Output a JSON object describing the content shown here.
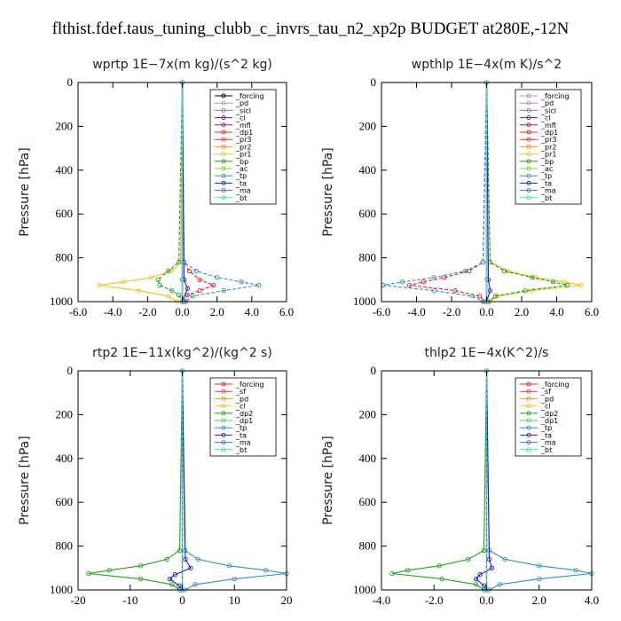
{
  "title": "flthist.fdef.taus_tuning_clubb_c_invrs_tau_n2_xp2p  BUDGET at280E,-12N",
  "chart_data": [
    {
      "type": "line",
      "title": "wprtp   1E−7x(m kg)/(s^2 kg)",
      "ylabel": "Pressure [hPa]",
      "xlim": [
        -6,
        6
      ],
      "ylim": [
        1000,
        0
      ],
      "xticks": [
        "-6.0",
        "-4.0",
        "-2.0",
        "0.0",
        "2.0",
        "4.0",
        "6.0"
      ],
      "yticks": [
        "0",
        "200",
        "400",
        "600",
        "800",
        "1000"
      ],
      "legend_position": "top-right",
      "series": [
        {
          "name": "_forcing",
          "color": "#000000",
          "p": [
            0,
            900,
            1000
          ],
          "x": [
            0,
            0,
            0
          ]
        },
        {
          "name": "_pd",
          "color": "#c08bc8",
          "p": [
            0,
            1000
          ],
          "x": [
            0,
            0
          ]
        },
        {
          "name": "_sicl",
          "color": "#8a6fd0",
          "p": [
            0,
            1000
          ],
          "x": [
            0,
            0
          ]
        },
        {
          "name": "_cl",
          "color": "#5a1e8a",
          "p": [
            0,
            1000
          ],
          "x": [
            0,
            0
          ]
        },
        {
          "name": "_mfl",
          "color": "#9a1a5a",
          "p": [
            0,
            1000
          ],
          "x": [
            0,
            0
          ]
        },
        {
          "name": "_dp1",
          "color": "#e0202a",
          "p": [
            0,
            820,
            860,
            900,
            925,
            950,
            970,
            1000
          ],
          "x": [
            0,
            0.1,
            0.4,
            1.0,
            1.8,
            1.0,
            0.3,
            0.1
          ]
        },
        {
          "name": "_pr3",
          "color": "#e83030",
          "p": [
            0,
            1000
          ],
          "x": [
            0,
            0
          ]
        },
        {
          "name": "_pr2",
          "color": "#f08a20",
          "p": [
            0,
            1000
          ],
          "x": [
            0,
            0
          ]
        },
        {
          "name": "_pr1",
          "color": "#f0c020",
          "p": [
            0,
            820,
            860,
            890,
            910,
            925,
            950,
            975,
            1000
          ],
          "x": [
            0,
            -0.1,
            -0.6,
            -1.8,
            -3.4,
            -4.8,
            -2.5,
            -0.8,
            -0.3
          ]
        },
        {
          "name": "_bp",
          "color": "#20a020",
          "p": [
            0,
            820,
            860,
            900,
            925,
            950,
            970,
            1000
          ],
          "x": [
            0,
            -0.2,
            -0.8,
            -1.4,
            -1.3,
            -0.6,
            -0.2,
            0
          ]
        },
        {
          "name": "_ac",
          "color": "#80d040",
          "p": [
            0,
            900,
            1000
          ],
          "x": [
            0,
            0,
            0
          ]
        },
        {
          "name": "_tp",
          "color": "#3090c0",
          "p": [
            0,
            820,
            860,
            890,
            910,
            925,
            950,
            975,
            1000
          ],
          "x": [
            0,
            0.1,
            0.8,
            2.0,
            3.4,
            4.4,
            2.4,
            0.6,
            0.2
          ]
        },
        {
          "name": "_ta",
          "color": "#2020d0",
          "p": [
            0,
            900,
            940,
            1000
          ],
          "x": [
            0,
            0.1,
            0.3,
            0
          ]
        },
        {
          "name": "_ma",
          "color": "#5070a0",
          "p": [
            0,
            1000
          ],
          "x": [
            0,
            0
          ]
        },
        {
          "name": "_bt",
          "color": "#30e0e0",
          "p": [
            0,
            1000
          ],
          "x": [
            0,
            0
          ]
        }
      ]
    },
    {
      "type": "line",
      "title": "wpthlp   1E−4x(m K)/s^2",
      "ylabel": "Pressure [hPa]",
      "xlim": [
        -6,
        6
      ],
      "ylim": [
        1000,
        0
      ],
      "xticks": [
        "-6.0",
        "-4.0",
        "-2.0",
        "0.0",
        "2.0",
        "4.0",
        "6.0"
      ],
      "yticks": [
        "0",
        "200",
        "400",
        "600",
        "800",
        "1000"
      ],
      "legend_position": "top-right",
      "series": [
        {
          "name": "_forcing",
          "color": "#c08bc8",
          "p": [
            0,
            1000
          ],
          "x": [
            0,
            0
          ]
        },
        {
          "name": "_pd",
          "color": "#c08bc8",
          "p": [
            0,
            1000
          ],
          "x": [
            0,
            0
          ]
        },
        {
          "name": "_sicl",
          "color": "#8a6fd0",
          "p": [
            0,
            1000
          ],
          "x": [
            0,
            0
          ]
        },
        {
          "name": "_cl",
          "color": "#5a1e8a",
          "p": [
            0,
            1000
          ],
          "x": [
            0,
            0
          ]
        },
        {
          "name": "_mfl",
          "color": "#9a1a5a",
          "p": [
            0,
            1000
          ],
          "x": [
            0,
            0
          ]
        },
        {
          "name": "_dp1",
          "color": "#e0202a",
          "p": [
            0,
            820,
            860,
            890,
            910,
            925,
            950,
            975,
            1000
          ],
          "x": [
            0,
            -0.2,
            -1.0,
            -2.4,
            -3.6,
            -4.4,
            -1.8,
            -0.4,
            -0.1
          ]
        },
        {
          "name": "_pr3",
          "color": "#e83030",
          "p": [
            0,
            1000
          ],
          "x": [
            0,
            0
          ]
        },
        {
          "name": "_pr2",
          "color": "#f08a20",
          "p": [
            0,
            1000
          ],
          "x": [
            0,
            0
          ]
        },
        {
          "name": "_pr1",
          "color": "#f0c020",
          "p": [
            0,
            820,
            860,
            890,
            910,
            925,
            950,
            975,
            1000
          ],
          "x": [
            0,
            0.2,
            1.2,
            2.8,
            4.4,
            5.4,
            2.6,
            0.6,
            0.2
          ]
        },
        {
          "name": "_bp",
          "color": "#20a020",
          "p": [
            0,
            820,
            860,
            890,
            910,
            925,
            950,
            975,
            1000
          ],
          "x": [
            0,
            0.2,
            1.0,
            2.6,
            3.8,
            4.6,
            2.2,
            0.5,
            0.1
          ]
        },
        {
          "name": "_ac",
          "color": "#80d040",
          "p": [
            0,
            900,
            1000
          ],
          "x": [
            0,
            0,
            0
          ]
        },
        {
          "name": "_tp",
          "color": "#3090c0",
          "p": [
            0,
            820,
            860,
            890,
            910,
            925,
            950,
            975,
            1000
          ],
          "x": [
            0,
            -0.2,
            -1.2,
            -3.0,
            -4.8,
            -5.9,
            -3.0,
            -0.8,
            -0.2
          ]
        },
        {
          "name": "_ta",
          "color": "#2020d0",
          "p": [
            0,
            900,
            950,
            1000
          ],
          "x": [
            0,
            0.1,
            0.2,
            0
          ]
        },
        {
          "name": "_ma",
          "color": "#5070a0",
          "p": [
            0,
            1000
          ],
          "x": [
            0,
            0
          ]
        },
        {
          "name": "_bt",
          "color": "#30e0e0",
          "p": [
            0,
            1000
          ],
          "x": [
            0,
            0
          ]
        }
      ]
    },
    {
      "type": "line",
      "title": "rtp2   1E−11x(kg^2)/(kg^2 s)",
      "ylabel": "Pressure [hPa]",
      "xlim": [
        -20,
        20
      ],
      "ylim": [
        1000,
        0
      ],
      "xticks": [
        "-20",
        "-10",
        "0",
        "10",
        "20"
      ],
      "yticks": [
        "0",
        "200",
        "400",
        "600",
        "800",
        "1000"
      ],
      "legend_position": "top-right",
      "series": [
        {
          "name": "_forcing",
          "color": "#e0202a",
          "p": [
            0,
            1000
          ],
          "x": [
            0,
            0
          ]
        },
        {
          "name": "_sf",
          "color": "#e04040",
          "p": [
            0,
            1000
          ],
          "x": [
            0,
            0
          ]
        },
        {
          "name": "_pd",
          "color": "#f08a20",
          "p": [
            0,
            1000
          ],
          "x": [
            0,
            0
          ]
        },
        {
          "name": "_cl",
          "color": "#f0c020",
          "p": [
            0,
            1000
          ],
          "x": [
            0,
            0
          ]
        },
        {
          "name": "_dp2",
          "color": "#20a020",
          "p": [
            0,
            820,
            860,
            890,
            910,
            925,
            950,
            975,
            1000
          ],
          "x": [
            0,
            -0.5,
            -3.0,
            -8.0,
            -14.0,
            -18.0,
            -8.0,
            -2.0,
            -0.5
          ]
        },
        {
          "name": "_dp1",
          "color": "#50d050",
          "p": [
            0,
            1000
          ],
          "x": [
            0,
            0
          ]
        },
        {
          "name": "_tp",
          "color": "#3090c0",
          "p": [
            0,
            820,
            860,
            890,
            910,
            925,
            950,
            975,
            1000
          ],
          "x": [
            0,
            0.5,
            3.0,
            9.0,
            16.0,
            20.0,
            10.0,
            2.5,
            0.5
          ]
        },
        {
          "name": "_ta",
          "color": "#2020d0",
          "p": [
            0,
            860,
            900,
            930,
            950,
            980,
            1000
          ],
          "x": [
            0,
            0.6,
            1.6,
            -1.4,
            -2.4,
            -0.6,
            0
          ]
        },
        {
          "name": "_ma",
          "color": "#5070a0",
          "p": [
            0,
            1000
          ],
          "x": [
            0,
            0
          ]
        },
        {
          "name": "_bt",
          "color": "#30e0e0",
          "p": [
            0,
            1000
          ],
          "x": [
            0,
            0
          ]
        }
      ]
    },
    {
      "type": "line",
      "title": "thlp2   1E−4x(K^2)/s",
      "ylabel": "Pressure [hPa]",
      "xlim": [
        -4,
        4
      ],
      "ylim": [
        1000,
        0
      ],
      "xticks": [
        "-4.0",
        "-2.0",
        "0.0",
        "2.0",
        "4.0"
      ],
      "yticks": [
        "0",
        "200",
        "400",
        "600",
        "800",
        "1000"
      ],
      "legend_position": "top-right",
      "series": [
        {
          "name": "_forcing",
          "color": "#e0202a",
          "p": [
            0,
            1000
          ],
          "x": [
            0,
            0
          ]
        },
        {
          "name": "_sf",
          "color": "#e04040",
          "p": [
            0,
            1000
          ],
          "x": [
            0,
            0
          ]
        },
        {
          "name": "_pd",
          "color": "#f08a20",
          "p": [
            0,
            1000
          ],
          "x": [
            0,
            0
          ]
        },
        {
          "name": "_cl",
          "color": "#f0c020",
          "p": [
            0,
            1000
          ],
          "x": [
            0,
            0
          ]
        },
        {
          "name": "_dp2",
          "color": "#20a020",
          "p": [
            0,
            820,
            860,
            890,
            910,
            925,
            950,
            975,
            1000
          ],
          "x": [
            0,
            -0.1,
            -0.7,
            -1.8,
            -3.0,
            -3.6,
            -1.7,
            -0.4,
            -0.1
          ]
        },
        {
          "name": "_dp1",
          "color": "#50d050",
          "p": [
            0,
            1000
          ],
          "x": [
            0,
            0
          ]
        },
        {
          "name": "_tp",
          "color": "#3090c0",
          "p": [
            0,
            820,
            860,
            890,
            910,
            925,
            950,
            975,
            1000
          ],
          "x": [
            0,
            0.1,
            0.7,
            2.0,
            3.4,
            4.0,
            2.0,
            0.5,
            0.1
          ]
        },
        {
          "name": "_ta",
          "color": "#2020d0",
          "p": [
            0,
            860,
            900,
            930,
            950,
            980,
            1000
          ],
          "x": [
            0,
            0.1,
            0.2,
            -0.25,
            -0.4,
            -0.1,
            0
          ]
        },
        {
          "name": "_ma",
          "color": "#5070a0",
          "p": [
            0,
            1000
          ],
          "x": [
            0,
            0
          ]
        },
        {
          "name": "_bt",
          "color": "#30e0e0",
          "p": [
            0,
            1000
          ],
          "x": [
            0,
            0
          ]
        }
      ]
    }
  ]
}
